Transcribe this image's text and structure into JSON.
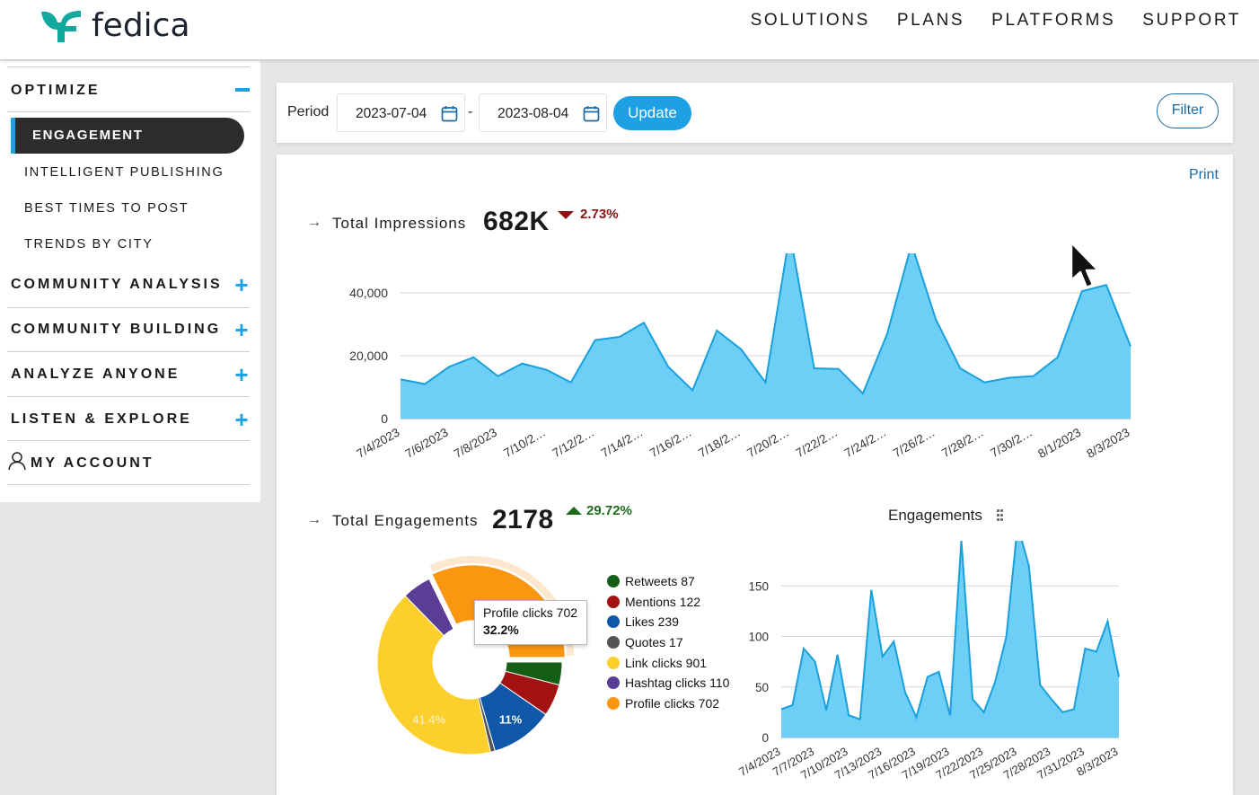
{
  "brand": {
    "name": "fedica",
    "color": "#1ea1e4",
    "logo_color": "#13a89e"
  },
  "nav": [
    "SOLUTIONS",
    "PLANS",
    "PLATFORMS",
    "SUPPORT"
  ],
  "sidebar": {
    "optimize": "OPTIMIZE",
    "items": [
      "ENGAGEMENT",
      "INTELLIGENT PUBLISHING",
      "BEST TIMES TO POST",
      "TRENDS BY CITY"
    ],
    "sections": [
      "COMMUNITY ANALYSIS",
      "COMMUNITY BUILDING",
      "ANALYZE ANYONE",
      "LISTEN & EXPLORE"
    ],
    "account": "MY ACCOUNT"
  },
  "toolbar": {
    "period_label": "Period",
    "start_date": "2023-07-04",
    "end_date": "2023-08-04",
    "separator": "-",
    "update_label": "Update",
    "filter_label": "Filter"
  },
  "content": {
    "print_label": "Print",
    "arrow": "→",
    "impressions": {
      "label": "Total Impressions",
      "value": "682K",
      "change": "2.73%",
      "direction": "down"
    },
    "engagements": {
      "label": "Total Engagements",
      "value": "2178",
      "change": "29.72%",
      "direction": "up"
    },
    "engagements_chart_title": "Engagements",
    "tooltip": {
      "label": "Profile clicks 702",
      "percent": "32.2%"
    }
  },
  "chart_data": [
    {
      "type": "area",
      "ylim": [
        0,
        50000
      ],
      "yticks": [
        0,
        20000,
        40000
      ],
      "ytick_labels": [
        "0",
        "20,000",
        "40,000"
      ],
      "xtick_labels": [
        "7/4/2023",
        "7/6/2023",
        "7/8/2023",
        "7/10/2…",
        "7/12/2…",
        "7/14/2…",
        "7/16/2…",
        "7/18/2…",
        "7/20/2…",
        "7/22/2…",
        "7/24/2…",
        "7/26/2…",
        "7/28/2…",
        "7/30/2…",
        "8/1/2023",
        "8/3/2023"
      ],
      "values": [
        12500,
        11000,
        16500,
        19500,
        13500,
        17500,
        15500,
        11500,
        25000,
        26000,
        30500,
        16500,
        9000,
        28000,
        22000,
        11500,
        59000,
        16000,
        15800,
        8000,
        27000,
        55500,
        31500,
        16000,
        11500,
        13000,
        13500,
        19500,
        40500,
        42500,
        23000
      ],
      "color": "#6dcff6",
      "line_color": "#1aa0dc"
    },
    {
      "type": "pie",
      "donut": true,
      "slices": [
        {
          "name": "Retweets",
          "value": 87,
          "color": "#155e15"
        },
        {
          "name": "Mentions",
          "value": 122,
          "color": "#a31212"
        },
        {
          "name": "Likes",
          "value": 239,
          "color": "#0f58a8"
        },
        {
          "name": "Quotes",
          "value": 17,
          "color": "#545454"
        },
        {
          "name": "Link clicks",
          "value": 901,
          "color": "#fdcf2d"
        },
        {
          "name": "Hashtag clicks",
          "value": 110,
          "color": "#5a3d94"
        },
        {
          "name": "Profile clicks",
          "value": 702,
          "color": "#fa9610"
        }
      ],
      "slice_labels": [
        "11%",
        "41.4%"
      ]
    },
    {
      "type": "area",
      "title": "Engagements",
      "ylim": [
        0,
        200
      ],
      "yticks": [
        0,
        50,
        100,
        150,
        200
      ],
      "xtick_labels": [
        "7/4/2023",
        "7/7/2023",
        "7/10/2023",
        "7/13/2023",
        "7/16/2023",
        "7/19/2023",
        "7/22/2023",
        "7/25/2023",
        "7/28/2023",
        "7/31/2023",
        "8/3/2023"
      ],
      "values": [
        28,
        32,
        88,
        75,
        27,
        82,
        22,
        18,
        146,
        80,
        95,
        45,
        20,
        60,
        65,
        22,
        195,
        38,
        25,
        55,
        100,
        210,
        170,
        52,
        38,
        25,
        28,
        88,
        85,
        115,
        60
      ],
      "color": "#6dcff6",
      "line_color": "#1aa0dc"
    }
  ]
}
